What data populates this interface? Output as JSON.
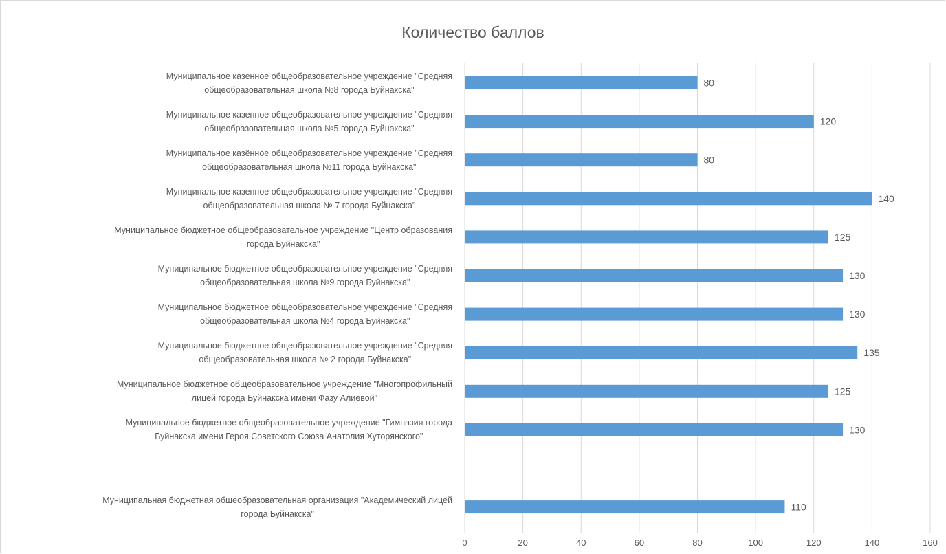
{
  "chart_data": {
    "type": "bar",
    "orientation": "horizontal",
    "title": "Количество баллов",
    "categories": [
      [
        "Муниципальное казенное общеобразовательное учреждение \"Средняя",
        "общеобразовательная школа №8 города Буйнакска\""
      ],
      [
        "Муниципальное казенное общеобразовательное учреждение \"Средняя",
        "общеобразовательная школа №5 города Буйнакска\""
      ],
      [
        "Муниципальное казённое общеобразовательное учреждение \"Средняя",
        "общеобразовательная школа №11 города Буйнакска\""
      ],
      [
        "Муниципальное казенное общеобразовательное учреждение \"Средняя",
        "общеобразовательная школа № 7 города Буйнакска\""
      ],
      [
        "Муниципальное бюджетное общеобразовательное учреждение \"Центр образования",
        "города Буйнакска\""
      ],
      [
        "Муниципальное бюджетное общеобразовательное учреждение \"Средняя",
        "общеобразовательная школа №9 города Буйнакска\""
      ],
      [
        "Муниципальное бюджетное общеобразовательное учреждение \"Средняя",
        "общеобразовательная школа №4 города Буйнакска\""
      ],
      [
        "Муниципальное бюджетное общеобразовательное учреждение \"Средняя",
        "общеобразовательная школа № 2 города Буйнакска\""
      ],
      [
        "Муниципальное бюджетное общеобразовательное учреждение \"Многопрофильный",
        "лицей города Буйнакска имени Фазу Алиевой\""
      ],
      [
        "Муниципальное бюджетное общеобразовательное учреждение \"Гимназия города",
        "Буйнакска имени Героя Советского Союза Анатолия Хуторянского\""
      ],
      [
        "",
        ""
      ],
      [
        "Муниципальная бюджетная общеобразовательная организация \"Академический лицей",
        "города Буйнакска\""
      ]
    ],
    "values": [
      80,
      120,
      80,
      140,
      125,
      130,
      130,
      135,
      125,
      130,
      null,
      110
    ],
    "data_labels": [
      "80",
      "120",
      "80",
      "140",
      "125",
      "130",
      "130",
      "135",
      "125",
      "130",
      "",
      "110"
    ],
    "x_ticks": [
      "0",
      "20",
      "40",
      "60",
      "80",
      "100",
      "120",
      "140",
      "160"
    ],
    "xlim": [
      0,
      160
    ],
    "grid": "vertical",
    "legend": "none",
    "bar_color": "#5b9bd5",
    "grid_color": "#d9d9d9",
    "text_color": "#595959"
  }
}
